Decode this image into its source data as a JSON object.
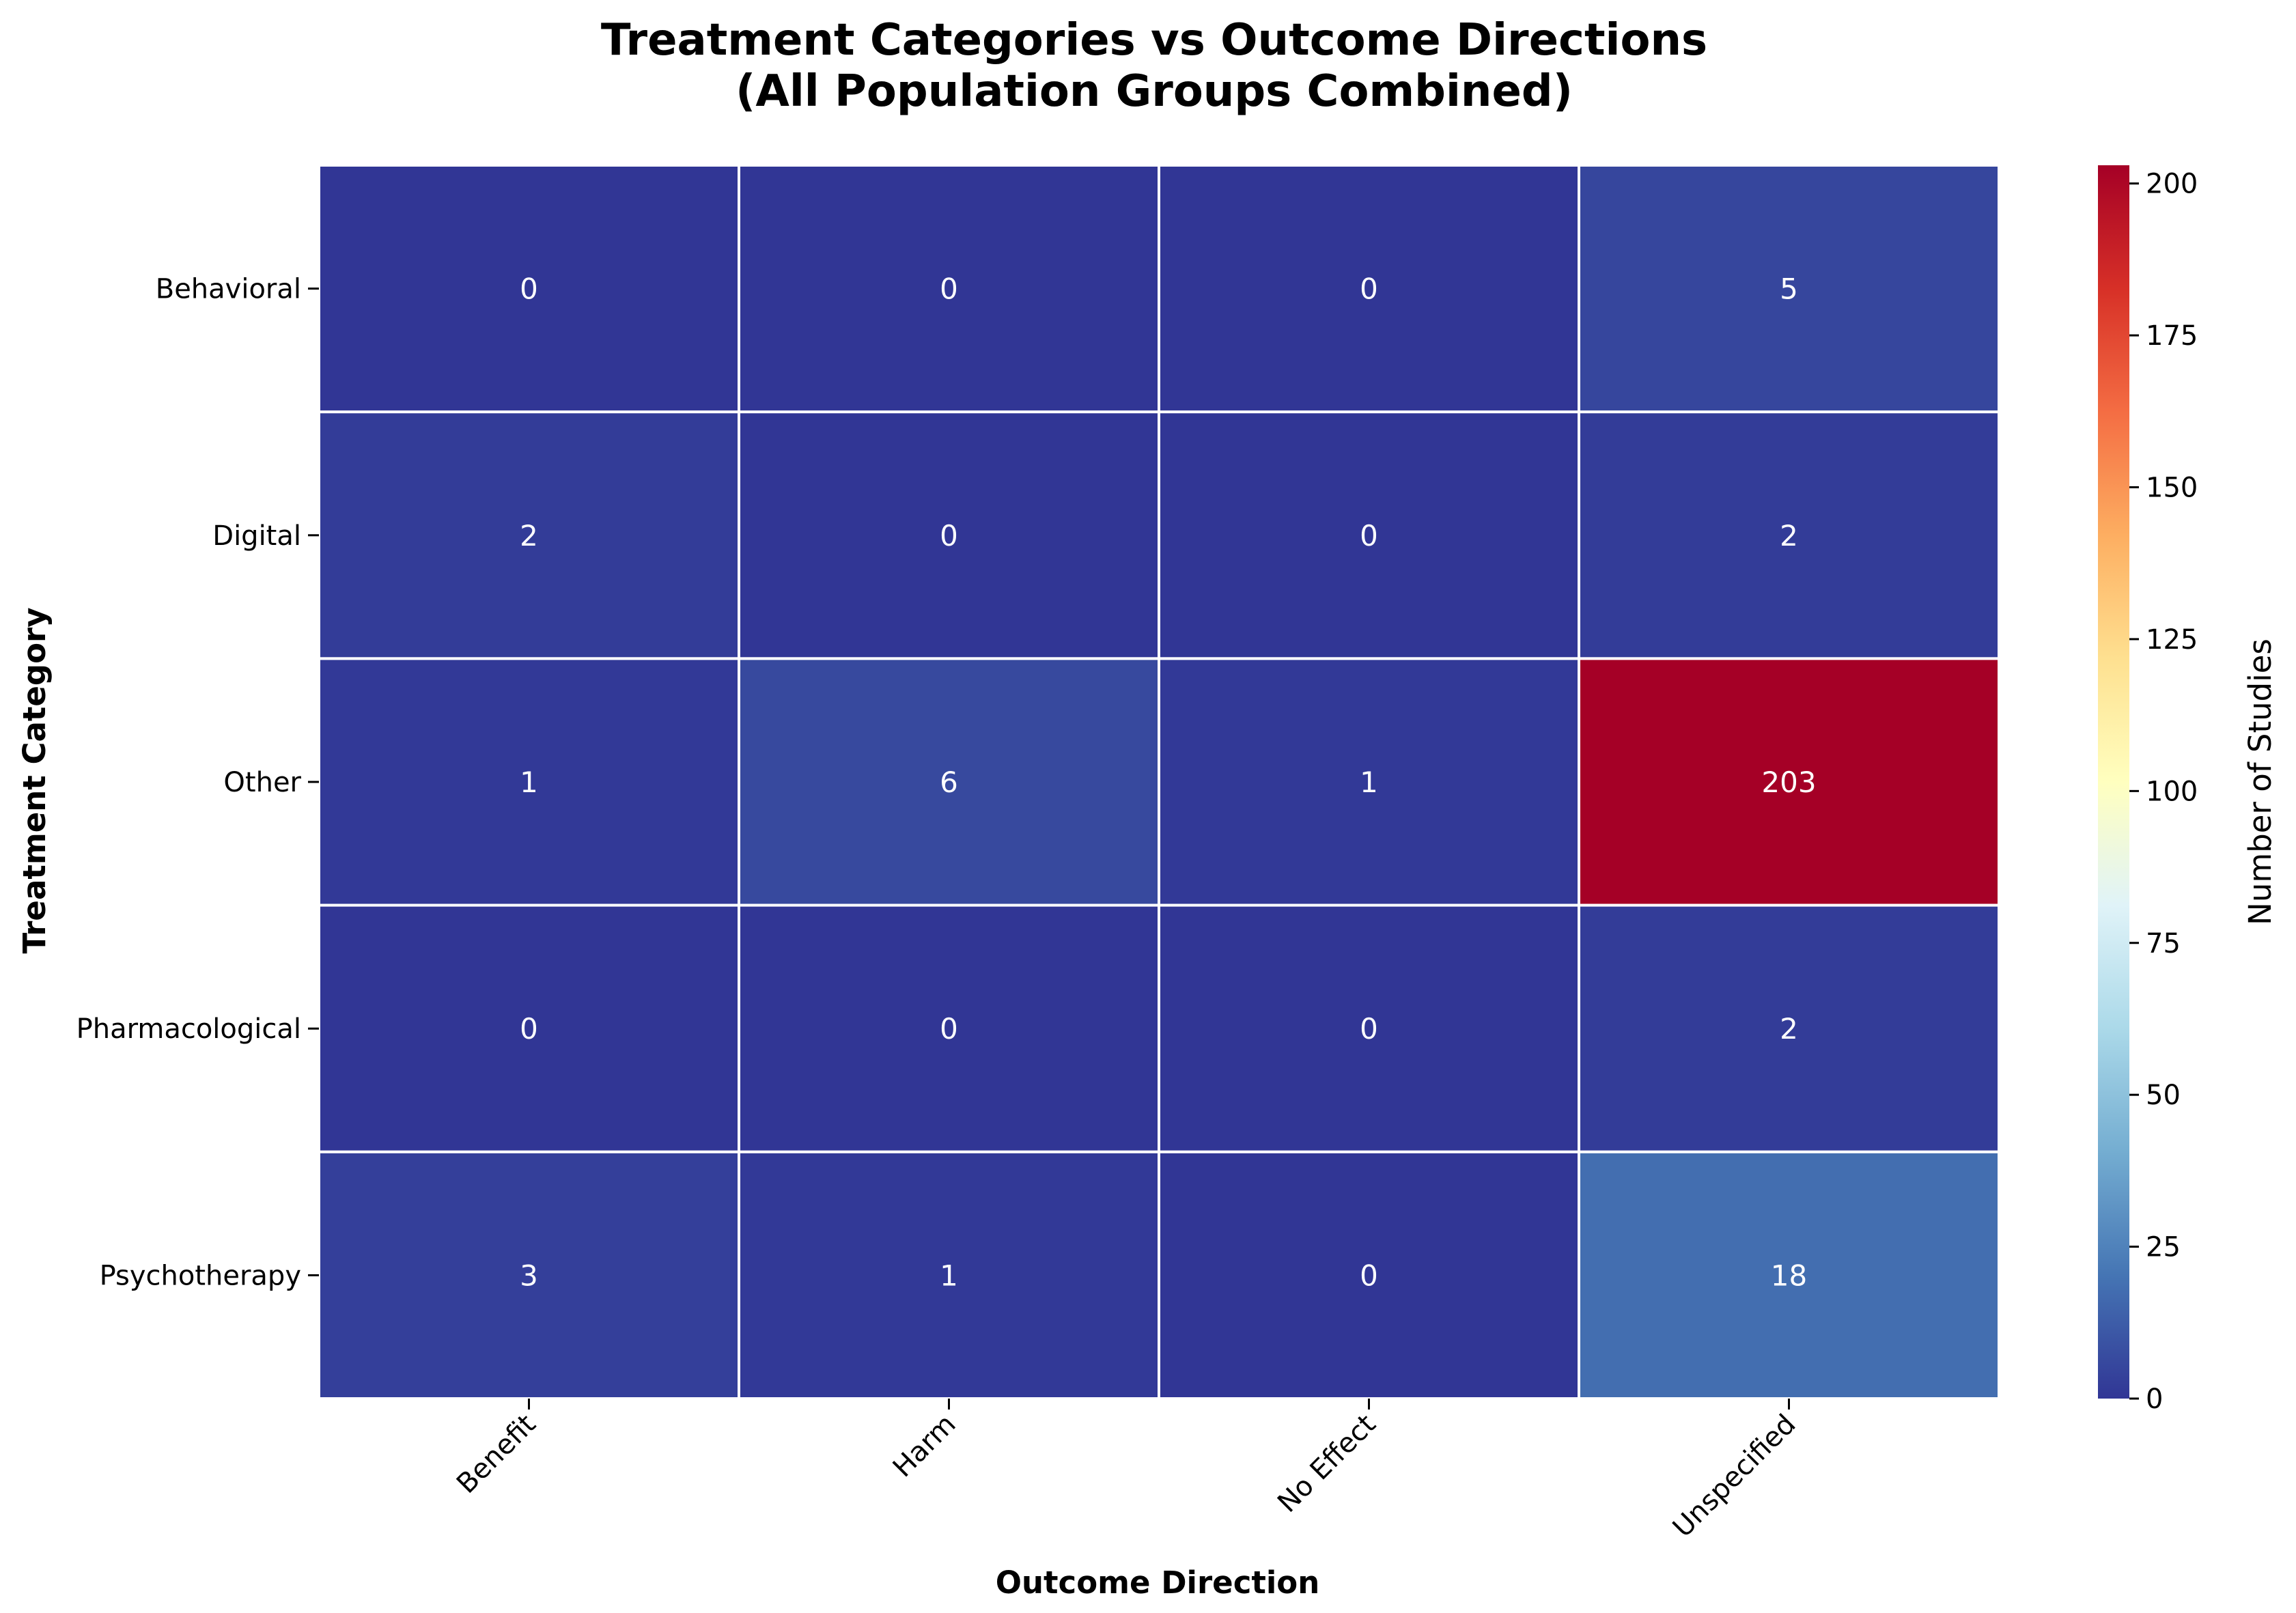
{
  "chart_data": {
    "type": "heatmap",
    "title_line1": "Treatment Categories vs Outcome Directions",
    "title_line2": "(All Population Groups Combined)",
    "xlabel": "Outcome Direction",
    "ylabel": "Treatment Category",
    "x_categories": [
      "Benefit",
      "Harm",
      "No Effect",
      "Unspecified"
    ],
    "y_categories": [
      "Behavioral",
      "Digital",
      "Other",
      "Pharmacological",
      "Psychotherapy"
    ],
    "values": [
      [
        0,
        0,
        0,
        5
      ],
      [
        2,
        0,
        0,
        2
      ],
      [
        1,
        6,
        1,
        203
      ],
      [
        0,
        0,
        0,
        2
      ],
      [
        3,
        1,
        0,
        18
      ]
    ],
    "colorbar": {
      "label": "Number of Studies",
      "min": 0,
      "max": 203,
      "ticks": [
        "0",
        "25",
        "50",
        "75",
        "100",
        "125",
        "150",
        "175",
        "200"
      ],
      "colormap": "RdYlBu_r",
      "colors": [
        "#313695",
        "#4575b4",
        "#74add1",
        "#abd9e9",
        "#e0f3f8",
        "#ffffbf",
        "#fee090",
        "#fdae61",
        "#f46d43",
        "#d73027",
        "#a50026"
      ]
    },
    "grid": false,
    "legend": "colorbar-right"
  }
}
